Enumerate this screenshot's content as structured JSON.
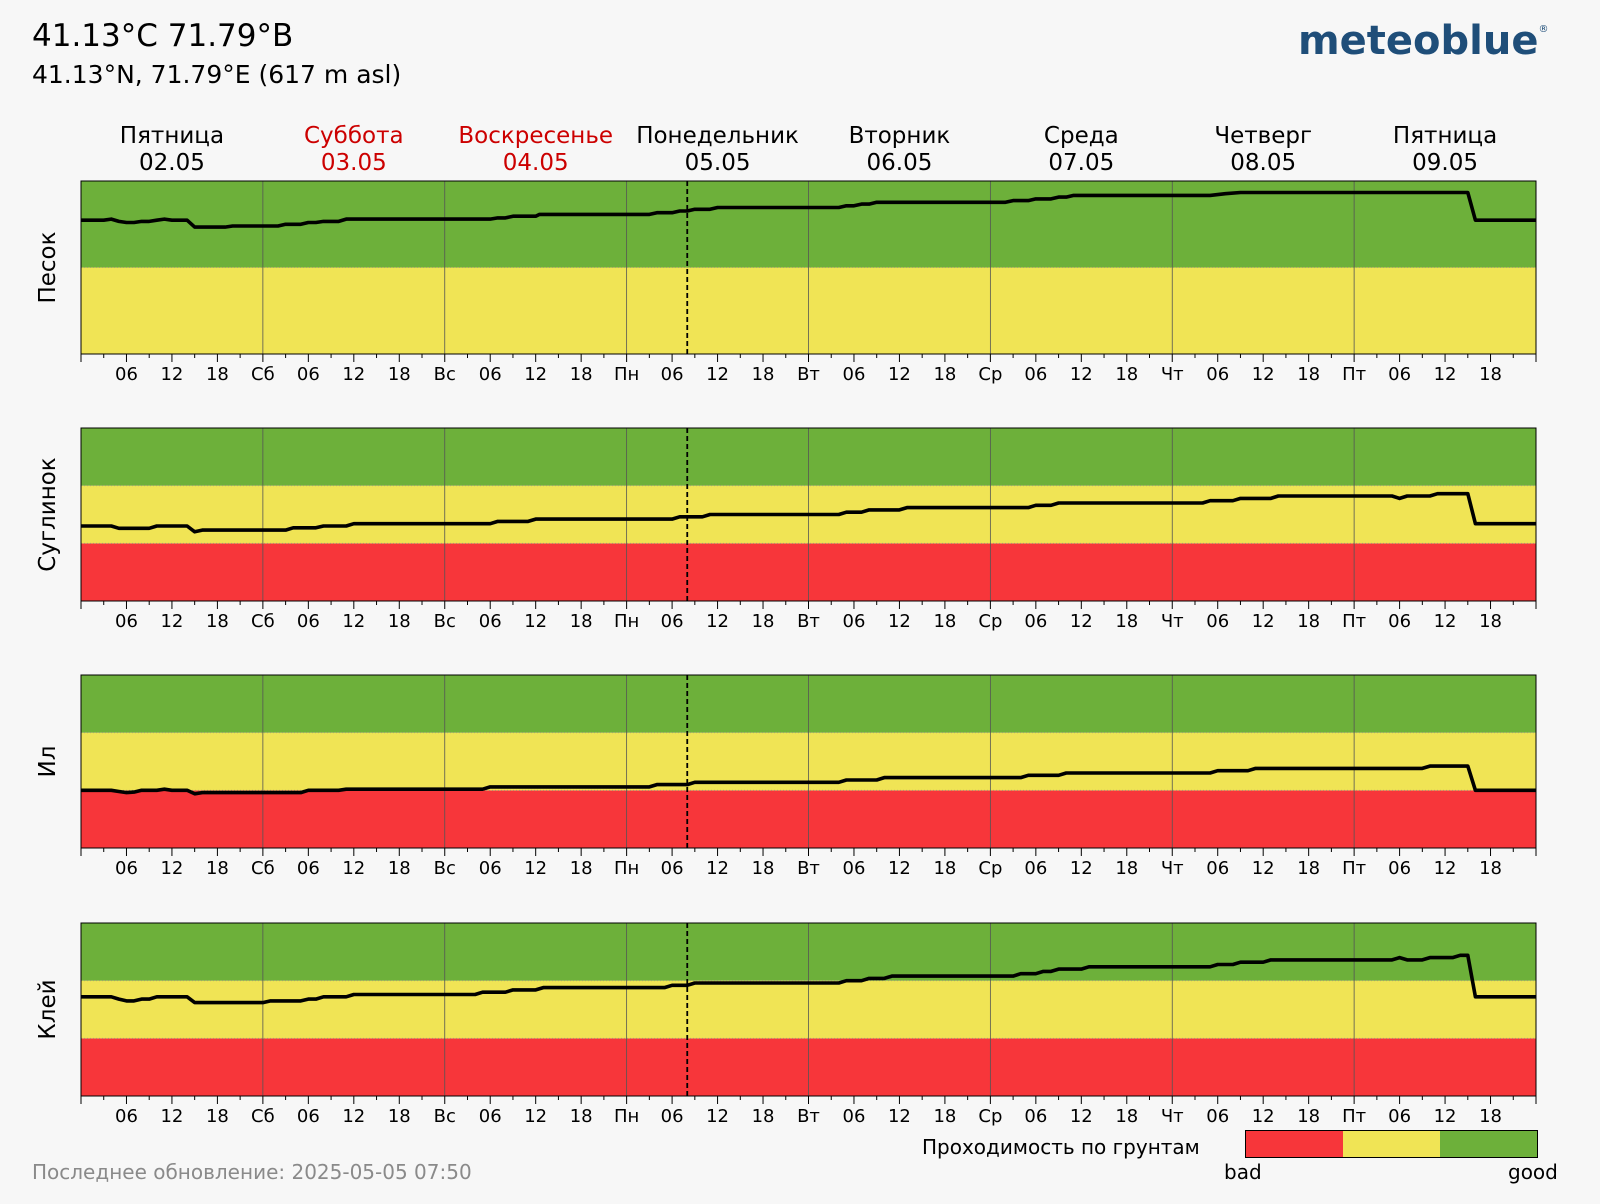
{
  "header": {
    "title": "41.13°C 71.79°B",
    "subtitle": "41.13°N, 71.79°E (617 m asl)",
    "logo": "meteoblue",
    "logo_mark": "®"
  },
  "footer": {
    "last_update": "Последнее обновление: 2025-05-05 07:50"
  },
  "legend": {
    "title": "Проходимость по грунтам",
    "low_label": "bad",
    "high_label": "good",
    "colors": [
      "#f7363a",
      "#f0e455",
      "#6db03a"
    ]
  },
  "colors": {
    "bad": "#f7363a",
    "medium": "#f0e455",
    "good": "#6db03a",
    "weekend": "#cc0000",
    "line": "#000000"
  },
  "chart_data": {
    "type": "line",
    "x_unit": "hours from 2025-05-02 00:00",
    "xlim": [
      0,
      192
    ],
    "ylim": [
      0,
      3
    ],
    "now_marker": "2025-05-05 08:00",
    "days": [
      {
        "name": "Пятница",
        "date": "02.05",
        "weekend": false
      },
      {
        "name": "Суббота",
        "date": "03.05",
        "weekend": true
      },
      {
        "name": "Воскресенье",
        "date": "04.05",
        "weekend": true
      },
      {
        "name": "Понедельник",
        "date": "05.05",
        "weekend": false
      },
      {
        "name": "Вторник",
        "date": "06.05",
        "weekend": false
      },
      {
        "name": "Среда",
        "date": "07.05",
        "weekend": false
      },
      {
        "name": "Четверг",
        "date": "08.05",
        "weekend": false
      },
      {
        "name": "Пятница",
        "date": "09.05",
        "weekend": false
      }
    ],
    "x_tick_labels": [
      "06",
      "12",
      "18",
      "Сб",
      "06",
      "12",
      "18",
      "Вс",
      "06",
      "12",
      "18",
      "Пн",
      "06",
      "12",
      "18",
      "Вт",
      "06",
      "12",
      "18",
      "Ср",
      "06",
      "12",
      "18",
      "Чт",
      "06",
      "12",
      "18",
      "Пт",
      "06",
      "12",
      "18"
    ],
    "panels": [
      {
        "ylabel": "Песок",
        "bands": [
          [
            0,
            1.5,
            "medium"
          ],
          [
            1.5,
            3,
            "good"
          ]
        ],
        "series": [
          [
            0,
            2.32
          ],
          [
            3,
            2.32
          ],
          [
            4,
            2.34
          ],
          [
            5,
            2.3
          ],
          [
            6,
            2.28
          ],
          [
            7,
            2.28
          ],
          [
            8,
            2.3
          ],
          [
            9,
            2.3
          ],
          [
            10,
            2.32
          ],
          [
            11,
            2.34
          ],
          [
            12,
            2.32
          ],
          [
            14,
            2.32
          ],
          [
            15,
            2.2
          ],
          [
            19,
            2.2
          ],
          [
            20,
            2.22
          ],
          [
            26,
            2.22
          ],
          [
            27,
            2.25
          ],
          [
            29,
            2.25
          ],
          [
            30,
            2.28
          ],
          [
            31,
            2.28
          ],
          [
            32,
            2.3
          ],
          [
            34,
            2.3
          ],
          [
            35,
            2.34
          ],
          [
            54,
            2.34
          ],
          [
            55,
            2.36
          ],
          [
            56,
            2.36
          ],
          [
            57,
            2.39
          ],
          [
            60,
            2.39
          ],
          [
            60.5,
            2.42
          ],
          [
            75,
            2.42
          ],
          [
            76,
            2.45
          ],
          [
            78,
            2.45
          ],
          [
            79,
            2.48
          ],
          [
            80,
            2.48
          ],
          [
            81,
            2.51
          ],
          [
            83,
            2.51
          ],
          [
            84,
            2.54
          ],
          [
            100,
            2.54
          ],
          [
            101,
            2.57
          ],
          [
            102,
            2.57
          ],
          [
            103,
            2.6
          ],
          [
            104,
            2.6
          ],
          [
            105,
            2.63
          ],
          [
            122,
            2.63
          ],
          [
            123,
            2.66
          ],
          [
            125,
            2.66
          ],
          [
            126,
            2.69
          ],
          [
            128,
            2.69
          ],
          [
            129,
            2.72
          ],
          [
            130,
            2.72
          ],
          [
            131,
            2.75
          ],
          [
            149,
            2.75
          ],
          [
            151,
            2.78
          ],
          [
            153,
            2.8
          ],
          [
            183,
            2.8
          ],
          [
            184,
            2.32
          ],
          [
            192,
            2.32
          ]
        ]
      },
      {
        "ylabel": "Суглинок",
        "bands": [
          [
            0,
            1,
            "bad"
          ],
          [
            1,
            2,
            "medium"
          ],
          [
            2,
            3,
            "good"
          ]
        ],
        "series": [
          [
            0,
            1.3
          ],
          [
            4,
            1.3
          ],
          [
            5,
            1.26
          ],
          [
            9,
            1.26
          ],
          [
            10,
            1.3
          ],
          [
            14,
            1.3
          ],
          [
            15,
            1.2
          ],
          [
            16,
            1.23
          ],
          [
            27,
            1.23
          ],
          [
            28,
            1.27
          ],
          [
            31,
            1.27
          ],
          [
            32,
            1.3
          ],
          [
            35,
            1.3
          ],
          [
            36,
            1.34
          ],
          [
            54,
            1.34
          ],
          [
            55,
            1.38
          ],
          [
            59,
            1.38
          ],
          [
            60,
            1.42
          ],
          [
            78,
            1.42
          ],
          [
            79,
            1.46
          ],
          [
            82,
            1.46
          ],
          [
            83,
            1.5
          ],
          [
            100,
            1.5
          ],
          [
            101,
            1.54
          ],
          [
            103,
            1.54
          ],
          [
            104,
            1.58
          ],
          [
            108,
            1.58
          ],
          [
            109,
            1.62
          ],
          [
            125,
            1.62
          ],
          [
            126,
            1.66
          ],
          [
            128,
            1.66
          ],
          [
            129,
            1.7
          ],
          [
            148,
            1.7
          ],
          [
            149,
            1.74
          ],
          [
            152,
            1.74
          ],
          [
            153,
            1.78
          ],
          [
            157,
            1.78
          ],
          [
            158,
            1.82
          ],
          [
            173,
            1.82
          ],
          [
            174,
            1.78
          ],
          [
            175,
            1.82
          ],
          [
            178,
            1.82
          ],
          [
            179,
            1.86
          ],
          [
            183,
            1.86
          ],
          [
            184,
            1.34
          ],
          [
            192,
            1.34
          ]
        ]
      },
      {
        "ylabel": "Ил",
        "bands": [
          [
            0,
            1,
            "bad"
          ],
          [
            1,
            2,
            "medium"
          ],
          [
            2,
            3,
            "good"
          ]
        ],
        "series": [
          [
            0,
            1
          ],
          [
            4,
            1
          ],
          [
            5,
            0.98
          ],
          [
            6,
            0.96
          ],
          [
            7,
            0.97
          ],
          [
            8,
            1
          ],
          [
            10,
            1
          ],
          [
            11,
            1.02
          ],
          [
            12,
            1
          ],
          [
            14,
            1
          ],
          [
            15,
            0.94
          ],
          [
            16,
            0.96
          ],
          [
            29,
            0.96
          ],
          [
            30,
            1
          ],
          [
            34,
            1
          ],
          [
            35,
            1.02
          ],
          [
            53,
            1.02
          ],
          [
            54,
            1.06
          ],
          [
            75,
            1.06
          ],
          [
            76,
            1.1
          ],
          [
            80,
            1.1
          ],
          [
            81,
            1.14
          ],
          [
            100,
            1.14
          ],
          [
            101,
            1.18
          ],
          [
            105,
            1.18
          ],
          [
            106,
            1.22
          ],
          [
            124,
            1.22
          ],
          [
            125,
            1.26
          ],
          [
            129,
            1.26
          ],
          [
            130,
            1.3
          ],
          [
            149,
            1.3
          ],
          [
            150,
            1.34
          ],
          [
            154,
            1.34
          ],
          [
            155,
            1.38
          ],
          [
            177,
            1.38
          ],
          [
            178,
            1.42
          ],
          [
            183,
            1.42
          ],
          [
            184,
            1
          ],
          [
            192,
            1
          ]
        ]
      },
      {
        "ylabel": "Клей",
        "bands": [
          [
            0,
            1,
            "bad"
          ],
          [
            1,
            2,
            "medium"
          ],
          [
            2,
            3,
            "good"
          ]
        ],
        "series": [
          [
            0,
            1.72
          ],
          [
            4,
            1.72
          ],
          [
            5,
            1.68
          ],
          [
            6,
            1.65
          ],
          [
            7,
            1.65
          ],
          [
            8,
            1.68
          ],
          [
            9,
            1.68
          ],
          [
            10,
            1.72
          ],
          [
            14,
            1.72
          ],
          [
            15,
            1.62
          ],
          [
            24,
            1.62
          ],
          [
            25,
            1.65
          ],
          [
            29,
            1.65
          ],
          [
            30,
            1.68
          ],
          [
            31,
            1.68
          ],
          [
            32,
            1.72
          ],
          [
            35,
            1.72
          ],
          [
            36,
            1.76
          ],
          [
            52,
            1.76
          ],
          [
            53,
            1.8
          ],
          [
            56,
            1.8
          ],
          [
            57,
            1.84
          ],
          [
            60,
            1.84
          ],
          [
            61,
            1.88
          ],
          [
            77,
            1.88
          ],
          [
            78,
            1.92
          ],
          [
            80,
            1.92
          ],
          [
            81,
            1.96
          ],
          [
            100,
            1.96
          ],
          [
            101,
            2
          ],
          [
            103,
            2
          ],
          [
            104,
            2.04
          ],
          [
            106,
            2.04
          ],
          [
            107,
            2.08
          ],
          [
            123,
            2.08
          ],
          [
            124,
            2.12
          ],
          [
            126,
            2.12
          ],
          [
            127,
            2.16
          ],
          [
            128,
            2.16
          ],
          [
            129,
            2.2
          ],
          [
            132,
            2.2
          ],
          [
            133,
            2.24
          ],
          [
            149,
            2.24
          ],
          [
            150,
            2.28
          ],
          [
            152,
            2.28
          ],
          [
            153,
            2.32
          ],
          [
            156,
            2.32
          ],
          [
            157,
            2.36
          ],
          [
            173,
            2.36
          ],
          [
            174,
            2.4
          ],
          [
            175,
            2.36
          ],
          [
            177,
            2.36
          ],
          [
            178,
            2.4
          ],
          [
            181,
            2.4
          ],
          [
            182,
            2.44
          ],
          [
            183,
            2.44
          ],
          [
            184,
            1.72
          ],
          [
            192,
            1.72
          ]
        ]
      }
    ]
  }
}
